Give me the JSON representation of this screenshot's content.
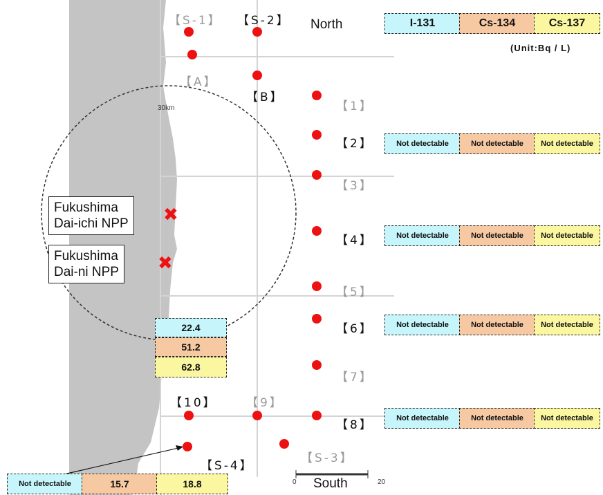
{
  "compass": {
    "north": "North",
    "south": "South"
  },
  "legend": {
    "i131": "I-131",
    "cs134": "Cs-134",
    "cs137": "Cs-137",
    "unit": "(Unit:Bq / L)"
  },
  "radius_label": "30km",
  "scale_bar": {
    "left": "0",
    "right": "20"
  },
  "plants": {
    "daiichi": "Fukushima\nDai-ichi NPP",
    "daini": "Fukushima\nDai-ni NPP"
  },
  "points": {
    "s1": "【S-1】",
    "s2": "【S-2】",
    "a": "【A】",
    "b": "【B】",
    "p1": "【1】",
    "p2": "【2】",
    "p3": "【3】",
    "p4": "【4】",
    "p5": "【5】",
    "p6": "【6】",
    "p7": "【7】",
    "p8": "【8】",
    "p9": "【9】",
    "p10": "【10】",
    "s3": "【S-3】",
    "s4": "【S-4】"
  },
  "readings": {
    "p2": {
      "i131": "Not detectable",
      "cs134": "Not detectable",
      "cs137": "Not detectable"
    },
    "p4": {
      "i131": "Not detectable",
      "cs134": "Not detectable",
      "cs137": "Not detectable"
    },
    "p6": {
      "i131": "Not detectable",
      "cs134": "Not detectable",
      "cs137": "Not detectable"
    },
    "p8": {
      "i131": "Not detectable",
      "cs134": "Not detectable",
      "cs137": "Not detectable"
    },
    "coastal": {
      "i131": "22.4",
      "cs134": "51.2",
      "cs137": "62.8"
    },
    "s4": {
      "i131": "Not detectable",
      "cs134": "15.7",
      "cs137": "18.8"
    }
  },
  "colors": {
    "i131": "#c6f6fb",
    "cs134": "#f7c9a3",
    "cs137": "#fbf7a0",
    "sample_point": "#ee1111",
    "land": "#c4c4c4"
  }
}
